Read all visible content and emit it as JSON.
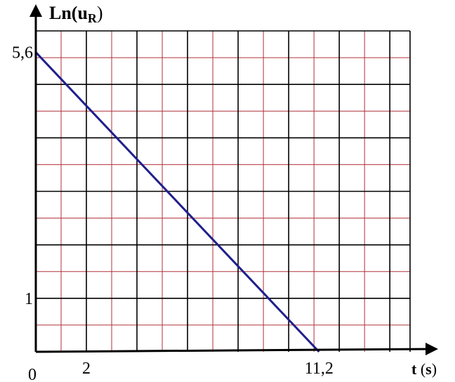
{
  "chart_data": {
    "type": "line",
    "ylabel": {
      "main": "Ln(u",
      "sub": "R",
      "close": ")"
    },
    "xlabel": {
      "var": "t",
      "unit_open": " (",
      "unit": "s",
      "unit_close": ")"
    },
    "origin_label": "0",
    "x_tick_labels": [
      {
        "value": 2,
        "text": "2"
      },
      {
        "value": 11.2,
        "text": "11,2"
      }
    ],
    "y_tick_labels": [
      {
        "value": 1,
        "text": "1"
      },
      {
        "value": 5.6,
        "text": "5,6"
      }
    ],
    "xlim": [
      0,
      14.8
    ],
    "ylim": [
      0,
      6.0
    ],
    "grid": true,
    "major_grid_x_step": 2,
    "minor_grid_x_step": 1,
    "major_grid_y_step": 1,
    "minor_grid_y_step": 0.5,
    "series": [
      {
        "x": [
          0,
          11.2
        ],
        "y": [
          5.6,
          0
        ],
        "color": "#1f1f8c"
      }
    ],
    "colors": {
      "major_grid": "#000000",
      "minor_grid": "#b0303a",
      "axis": "#000000",
      "line": "#1f1f8c"
    }
  }
}
